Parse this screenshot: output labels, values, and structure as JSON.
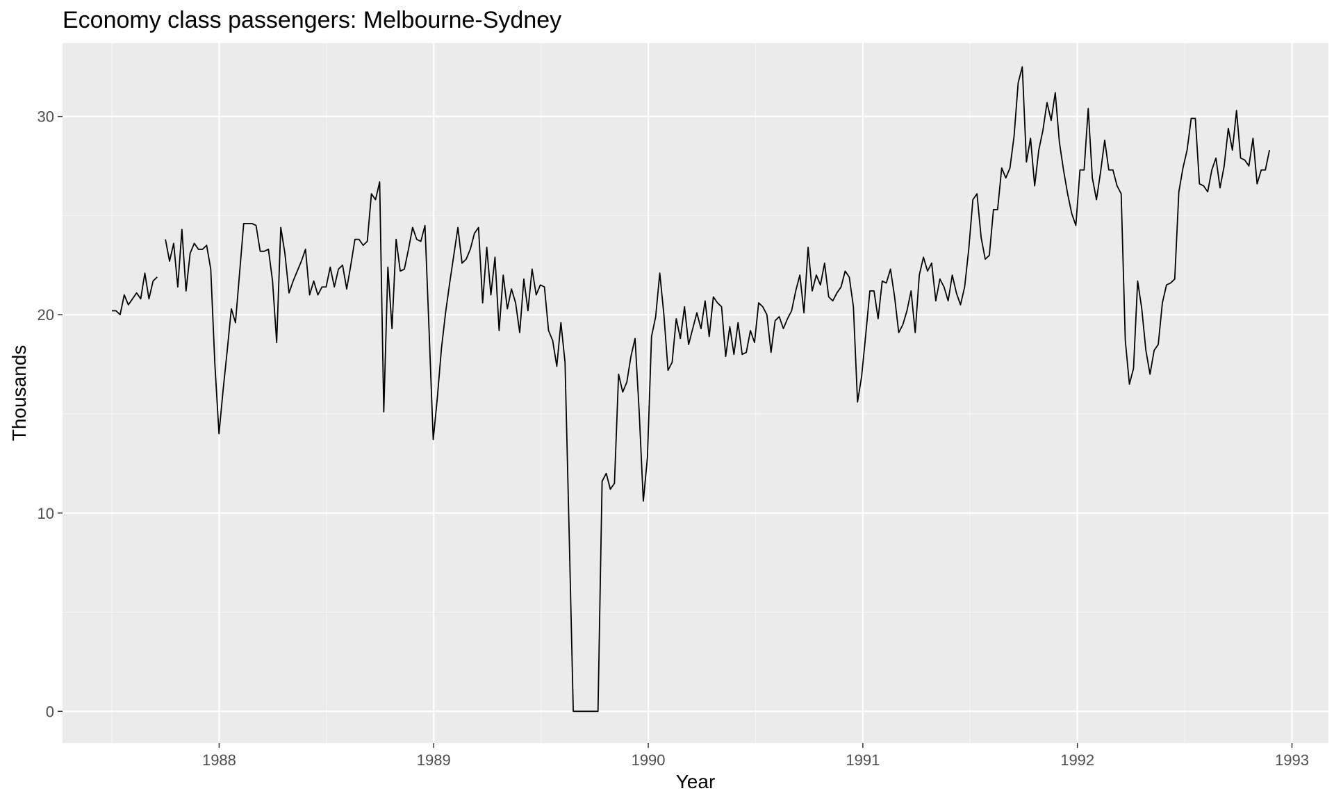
{
  "chart_data": {
    "type": "line",
    "title": "Economy class passengers: Melbourne-Sydney",
    "xlabel": "Year",
    "ylabel": "Thousands",
    "xlim": [
      1987.27,
      1993.17
    ],
    "ylim": [
      -1.6,
      33.7
    ],
    "x_ticks": [
      1988,
      1989,
      1990,
      1991,
      1992,
      1993
    ],
    "x_tick_labels": [
      "1988",
      "1989",
      "1990",
      "1991",
      "1992",
      "1993"
    ],
    "y_ticks": [
      0,
      10,
      20,
      30
    ],
    "y_tick_labels": [
      "0",
      "10",
      "20",
      "30"
    ],
    "grid": true,
    "legend": "none",
    "colors": {
      "panel": "#ebebeb",
      "grid_major": "#ffffff",
      "grid_minor": "#f5f5f5",
      "line": "#000000",
      "tick_text": "#4d4d4d",
      "tick_mark": "#333333"
    },
    "series": [
      {
        "start": 1987.5,
        "step": 0.0192,
        "values": [
          20.2,
          20.2,
          20.0,
          21.0,
          20.5,
          20.8,
          21.1,
          20.8,
          22.1,
          20.8,
          21.7,
          21.9,
          null,
          23.8,
          22.7,
          23.6,
          21.4,
          24.3,
          21.2,
          23.1,
          23.6,
          23.3,
          23.3,
          23.5,
          22.3,
          17.5,
          14.0,
          16.2,
          18.2,
          20.3,
          19.6,
          22.1,
          24.6,
          24.6,
          24.6,
          24.5,
          23.2,
          23.2,
          23.3,
          21.7,
          18.6,
          24.4,
          23.1,
          21.1,
          21.7,
          22.2,
          22.7,
          23.3,
          21.0,
          21.7,
          21.0,
          21.4,
          21.4,
          22.4,
          21.4,
          22.3,
          22.5,
          21.3,
          22.5,
          23.8,
          23.8,
          23.5,
          23.7,
          26.1,
          25.8,
          26.7,
          15.1,
          22.4,
          19.3,
          23.8,
          22.2,
          22.3,
          23.3,
          24.4,
          23.8,
          23.7,
          24.5,
          19.2,
          13.7,
          15.8,
          18.3,
          20.1,
          21.6,
          23.0,
          24.4,
          22.6,
          22.8,
          23.3,
          24.1,
          24.4,
          20.6,
          23.4,
          21.0,
          22.9,
          19.2,
          22.0,
          20.3,
          21.3,
          20.6,
          19.1,
          21.8,
          20.2,
          22.3,
          21.0,
          21.5,
          21.4,
          19.2,
          18.7,
          17.4,
          19.6,
          17.6,
          9.0,
          0.0,
          0.0,
          0.0,
          0.0,
          0.0,
          0.0,
          0.0,
          11.6,
          12.0,
          11.2,
          11.5,
          17.0,
          16.1,
          16.6,
          17.9,
          18.8,
          15.1,
          10.6,
          12.8,
          18.9,
          19.9,
          22.1,
          20.0,
          17.2,
          17.6,
          19.8,
          18.8,
          20.4,
          18.5,
          19.3,
          20.1,
          19.3,
          20.7,
          18.9,
          20.9,
          20.6,
          20.4,
          17.9,
          19.4,
          18.0,
          19.6,
          18.0,
          18.1,
          19.2,
          18.6,
          20.6,
          20.4,
          20.0,
          18.1,
          19.7,
          19.9,
          19.3,
          19.8,
          20.2,
          21.2,
          22.0,
          20.1,
          23.4,
          21.2,
          22.0,
          21.5,
          22.6,
          20.9,
          20.7,
          21.1,
          21.4,
          22.2,
          21.9,
          20.4,
          15.6,
          16.9,
          19.0,
          21.2,
          21.2,
          19.8,
          21.7,
          21.6,
          22.3,
          20.9,
          19.1,
          19.5,
          20.2,
          21.2,
          19.1,
          22.0,
          22.9,
          22.2,
          22.6,
          20.7,
          21.8,
          21.4,
          20.7,
          22.0,
          21.1,
          20.5,
          21.4,
          23.3,
          25.8,
          26.1,
          23.9,
          22.8,
          23.0,
          25.3,
          25.3,
          27.4,
          26.9,
          27.4,
          29.0,
          31.7,
          32.5,
          27.7,
          28.9,
          26.5,
          28.3,
          29.3,
          30.7,
          29.8,
          31.2,
          28.7,
          27.3,
          26.1,
          25.1,
          24.5,
          27.3,
          27.3,
          30.4,
          26.9,
          25.8,
          27.2,
          28.8,
          27.3,
          27.3,
          26.5,
          26.1,
          18.7,
          16.5,
          17.3,
          21.7,
          20.3,
          18.2,
          17.0,
          18.2,
          18.5,
          20.6,
          21.5,
          21.6,
          21.8,
          26.2,
          27.4,
          28.3,
          29.9,
          29.9,
          26.6,
          26.5,
          26.2,
          27.3,
          27.9,
          26.4,
          27.5,
          29.4,
          28.3,
          30.3,
          27.9,
          27.8,
          27.5,
          28.9,
          26.6,
          27.3,
          27.3,
          28.3
        ]
      }
    ]
  }
}
